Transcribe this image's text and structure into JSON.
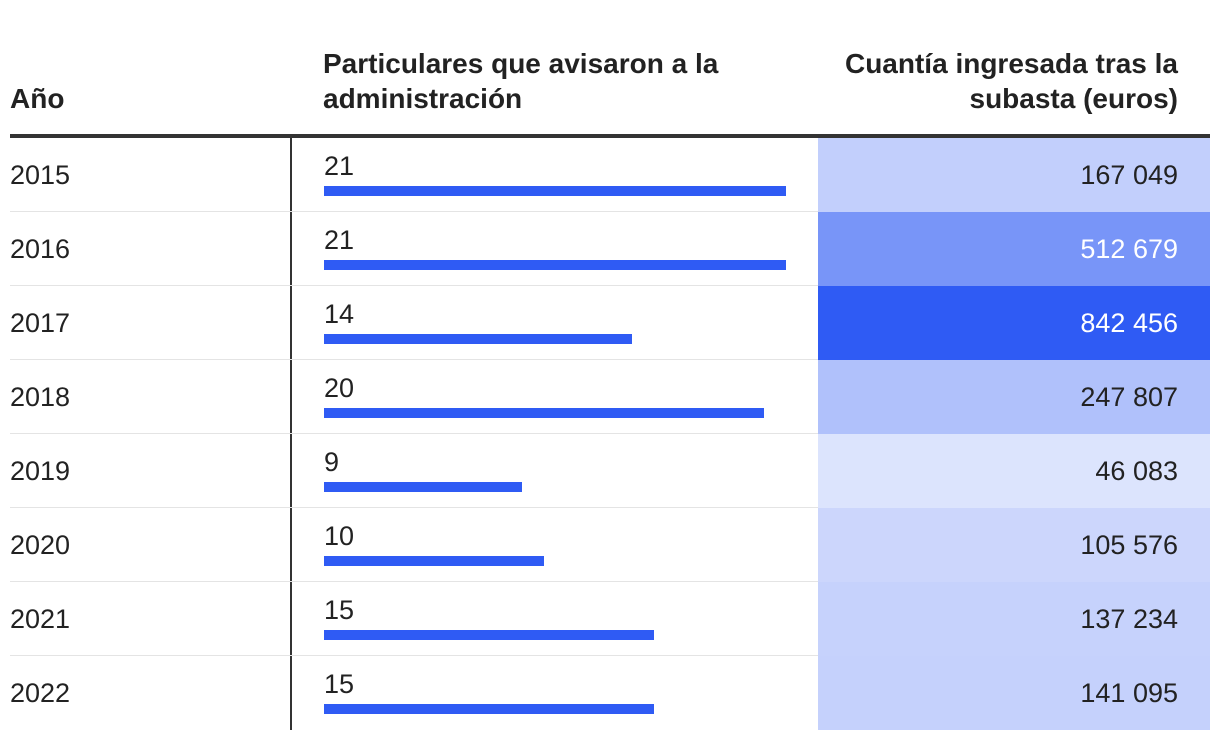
{
  "headers": {
    "year": "Año",
    "count": "Particulares que avisaron a la administración",
    "amount": "Cuantía ingresada tras la subasta (euros)"
  },
  "colors": {
    "bar": "#2f5bf4",
    "divider": "#333333"
  },
  "chart_data": {
    "type": "table",
    "columns": [
      "Año",
      "Particulares que avisaron a la administración",
      "Cuantía ingresada tras la subasta (euros)"
    ],
    "bar_max": 21,
    "rows": [
      {
        "year": "2015",
        "count": 21,
        "count_label": "21",
        "amount": 167049,
        "amount_label": "167 049",
        "fill": "#c2cffc",
        "text_color": "#222222"
      },
      {
        "year": "2016",
        "count": 21,
        "count_label": "21",
        "amount": 512679,
        "amount_label": "512 679",
        "fill": "#7895f8",
        "text_color": "#ffffff"
      },
      {
        "year": "2017",
        "count": 14,
        "count_label": "14",
        "amount": 842456,
        "amount_label": "842 456",
        "fill": "#2f5bf4",
        "text_color": "#ffffff"
      },
      {
        "year": "2018",
        "count": 20,
        "count_label": "20",
        "amount": 247807,
        "amount_label": "247 807",
        "fill": "#b0c1fb",
        "text_color": "#222222"
      },
      {
        "year": "2019",
        "count": 9,
        "count_label": "9",
        "amount": 46083,
        "amount_label": "46 083",
        "fill": "#dce4fd",
        "text_color": "#222222"
      },
      {
        "year": "2020",
        "count": 10,
        "count_label": "10",
        "amount": 105576,
        "amount_label": "105 576",
        "fill": "#ccd6fc",
        "text_color": "#222222"
      },
      {
        "year": "2021",
        "count": 15,
        "count_label": "15",
        "amount": 137234,
        "amount_label": "137 234",
        "fill": "#c6d2fc",
        "text_color": "#222222"
      },
      {
        "year": "2022",
        "count": 15,
        "count_label": "15",
        "amount": 141095,
        "amount_label": "141 095",
        "fill": "#c5d1fc",
        "text_color": "#222222"
      }
    ]
  }
}
